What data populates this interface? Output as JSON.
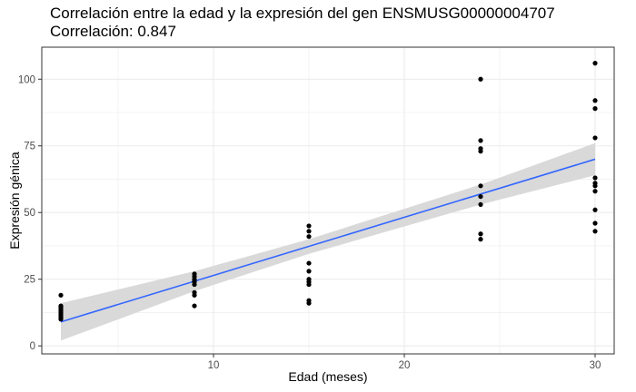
{
  "chart_data": {
    "type": "scatter",
    "title": "Correlación entre la edad y la expresión del gen ENSMUSG00000004707",
    "subtitle": "Correlación: 0.847",
    "xlabel": "Edad (meses)",
    "ylabel": "Expresión génica",
    "xlim": [
      1.0,
      31.0
    ],
    "ylim": [
      -3.0,
      112.0
    ],
    "x_ticks": [
      10,
      20,
      30
    ],
    "y_ticks": [
      0,
      25,
      50,
      75,
      100
    ],
    "grid": true,
    "legend": "none",
    "colors": {
      "points": "#000000",
      "fit_line": "#3366FF",
      "confidence_band": "#d9d9d9",
      "panel_border": "#333333",
      "grid": "#ebebeb"
    },
    "points": [
      {
        "x": 2,
        "y": 19
      },
      {
        "x": 2,
        "y": 15
      },
      {
        "x": 2,
        "y": 14.5
      },
      {
        "x": 2,
        "y": 14
      },
      {
        "x": 2,
        "y": 13.5
      },
      {
        "x": 2,
        "y": 13
      },
      {
        "x": 2,
        "y": 12.5
      },
      {
        "x": 2,
        "y": 12
      },
      {
        "x": 2,
        "y": 11.5
      },
      {
        "x": 2,
        "y": 11
      },
      {
        "x": 2,
        "y": 10.5
      },
      {
        "x": 2,
        "y": 10
      },
      {
        "x": 9,
        "y": 27
      },
      {
        "x": 9,
        "y": 26
      },
      {
        "x": 9,
        "y": 25
      },
      {
        "x": 9,
        "y": 24.5
      },
      {
        "x": 9,
        "y": 24
      },
      {
        "x": 9,
        "y": 23
      },
      {
        "x": 9,
        "y": 20
      },
      {
        "x": 9,
        "y": 19
      },
      {
        "x": 9,
        "y": 15
      },
      {
        "x": 15,
        "y": 45
      },
      {
        "x": 15,
        "y": 43
      },
      {
        "x": 15,
        "y": 41
      },
      {
        "x": 15,
        "y": 31
      },
      {
        "x": 15,
        "y": 28
      },
      {
        "x": 15,
        "y": 25
      },
      {
        "x": 15,
        "y": 24
      },
      {
        "x": 15,
        "y": 23
      },
      {
        "x": 15,
        "y": 17
      },
      {
        "x": 15,
        "y": 16
      },
      {
        "x": 24,
        "y": 100
      },
      {
        "x": 24,
        "y": 77
      },
      {
        "x": 24,
        "y": 74
      },
      {
        "x": 24,
        "y": 73
      },
      {
        "x": 24,
        "y": 60
      },
      {
        "x": 24,
        "y": 56
      },
      {
        "x": 24,
        "y": 53
      },
      {
        "x": 24,
        "y": 42
      },
      {
        "x": 24,
        "y": 40
      },
      {
        "x": 30,
        "y": 106
      },
      {
        "x": 30,
        "y": 92
      },
      {
        "x": 30,
        "y": 89
      },
      {
        "x": 30,
        "y": 78
      },
      {
        "x": 30,
        "y": 63
      },
      {
        "x": 30,
        "y": 61
      },
      {
        "x": 30,
        "y": 60
      },
      {
        "x": 30,
        "y": 58
      },
      {
        "x": 30,
        "y": 51
      },
      {
        "x": 30,
        "y": 46
      },
      {
        "x": 30,
        "y": 43
      }
    ],
    "fit_line": {
      "x": [
        2,
        30
      ],
      "y": [
        9,
        70
      ]
    },
    "confidence_band": {
      "x": [
        2,
        9,
        15,
        24,
        30
      ],
      "lower": [
        2,
        20.5,
        34.5,
        53,
        64
      ],
      "upper": [
        16,
        28,
        40,
        60.5,
        76
      ]
    }
  }
}
